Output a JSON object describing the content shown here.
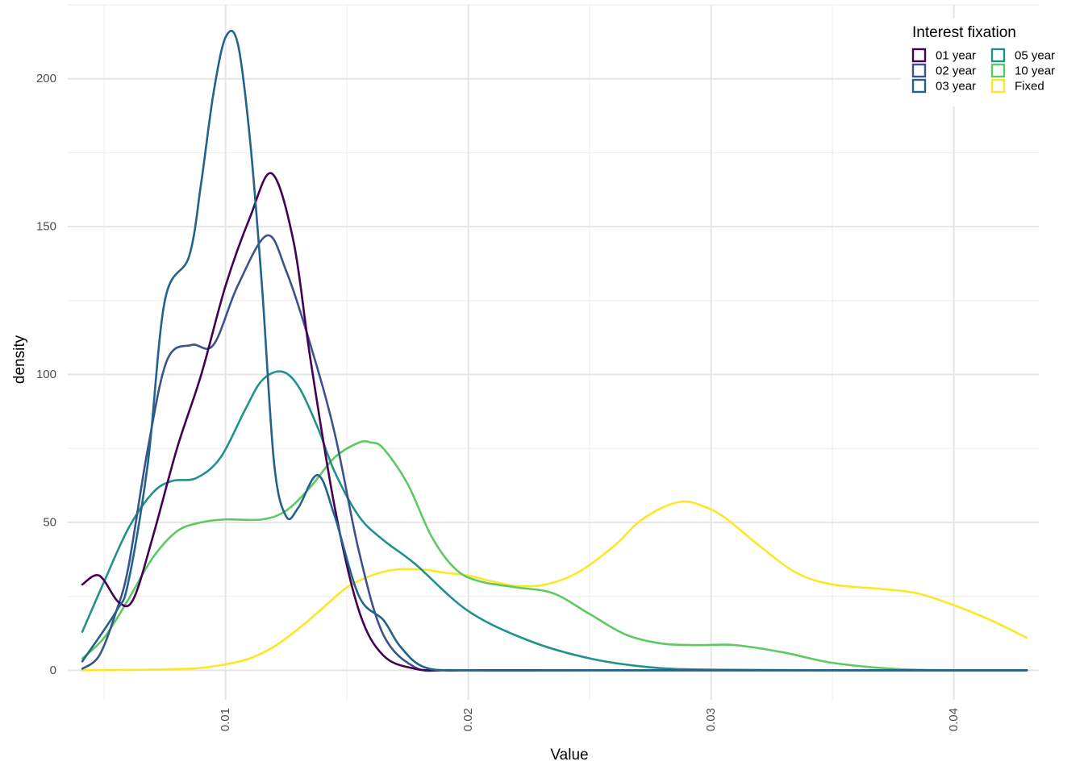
{
  "chart_data": {
    "type": "line",
    "xlabel": "Value",
    "ylabel": "density",
    "xlim": [
      0.0035,
      0.0435
    ],
    "ylim": [
      -10,
      225
    ],
    "x_ticks": [
      0.01,
      0.02,
      0.03,
      0.04
    ],
    "x_tick_labels": [
      "0.01",
      "0.02",
      "0.03",
      "0.04"
    ],
    "x_minor_ticks": [
      0.005,
      0.015,
      0.025,
      0.035
    ],
    "y_ticks": [
      0,
      50,
      100,
      150,
      200
    ],
    "y_tick_labels": [
      "0",
      "50",
      "100",
      "150",
      "200"
    ],
    "y_minor_ticks": [
      25,
      75,
      125,
      175,
      225
    ],
    "grid": true,
    "legend": {
      "title": "Interest fixation",
      "position": "top-right"
    },
    "series": [
      {
        "name": "01 year",
        "color": "#440154",
        "x": [
          0.0041,
          0.0048,
          0.0056,
          0.0062,
          0.007,
          0.008,
          0.009,
          0.01,
          0.011,
          0.0119,
          0.0128,
          0.0135,
          0.0145,
          0.0155,
          0.0165,
          0.0178,
          0.019,
          0.02,
          0.025,
          0.03,
          0.035,
          0.04,
          0.043
        ],
        "values": [
          29,
          32,
          23,
          24,
          45,
          75,
          100,
          130,
          153,
          168,
          145,
          105,
          55,
          20,
          5,
          0.5,
          0,
          0,
          0,
          0,
          0,
          0,
          0
        ]
      },
      {
        "name": "02 year",
        "color": "#3b528b",
        "x": [
          0.0041,
          0.0048,
          0.0055,
          0.006,
          0.0068,
          0.0076,
          0.0086,
          0.0095,
          0.0105,
          0.0117,
          0.0125,
          0.0135,
          0.0145,
          0.0155,
          0.0165,
          0.0178,
          0.019,
          0.02,
          0.025,
          0.03,
          0.035,
          0.04,
          0.043
        ],
        "values": [
          0.5,
          5,
          20,
          35,
          75,
          105,
          110,
          110,
          130,
          147,
          135,
          110,
          80,
          40,
          12,
          1,
          0,
          0,
          0,
          0,
          0,
          0,
          0
        ]
      },
      {
        "name": "03 year",
        "color": "#21638d",
        "x": [
          0.0041,
          0.0055,
          0.006,
          0.0068,
          0.0075,
          0.0085,
          0.009,
          0.0095,
          0.01,
          0.0105,
          0.011,
          0.0115,
          0.012,
          0.0125,
          0.013,
          0.0138,
          0.0145,
          0.0155,
          0.0165,
          0.0172,
          0.0182,
          0.02,
          0.025,
          0.03,
          0.035,
          0.04,
          0.043
        ],
        "values": [
          3,
          20,
          30,
          70,
          125,
          140,
          165,
          195,
          214,
          212,
          180,
          130,
          70,
          52,
          55,
          66,
          52,
          25,
          17,
          8,
          1,
          0,
          0,
          0,
          0,
          0,
          0
        ]
      },
      {
        "name": "05 year",
        "color": "#21918c",
        "x": [
          0.0041,
          0.005,
          0.006,
          0.007,
          0.0078,
          0.0088,
          0.0098,
          0.0108,
          0.0115,
          0.0123,
          0.013,
          0.0138,
          0.0145,
          0.0155,
          0.0165,
          0.0178,
          0.02,
          0.0225,
          0.025,
          0.0275,
          0.03,
          0.035,
          0.04,
          0.043
        ],
        "values": [
          13,
          30,
          48,
          60,
          64,
          65,
          72,
          88,
          98,
          101,
          96,
          82,
          67,
          52,
          44,
          36,
          20,
          10,
          4,
          1,
          0.2,
          0,
          0,
          0
        ]
      },
      {
        "name": "10 year",
        "color": "#5ec962",
        "x": [
          0.0041,
          0.005,
          0.006,
          0.007,
          0.008,
          0.009,
          0.01,
          0.0115,
          0.0125,
          0.0135,
          0.0145,
          0.0155,
          0.016,
          0.0165,
          0.0175,
          0.0185,
          0.0195,
          0.0205,
          0.022,
          0.0235,
          0.025,
          0.0265,
          0.028,
          0.0295,
          0.031,
          0.033,
          0.035,
          0.0375,
          0.04,
          0.043
        ],
        "values": [
          4,
          11,
          24,
          38,
          47,
          50,
          51,
          51,
          54,
          62,
          72,
          77,
          77,
          75,
          63,
          45,
          34,
          30,
          28,
          26,
          19,
          12,
          9,
          8.5,
          8.5,
          6,
          2.5,
          0.5,
          0,
          0
        ]
      },
      {
        "name": "Fixed",
        "color": "#fde725",
        "x": [
          0.0041,
          0.006,
          0.008,
          0.009,
          0.01,
          0.011,
          0.012,
          0.013,
          0.014,
          0.015,
          0.016,
          0.017,
          0.0182,
          0.019,
          0.02,
          0.021,
          0.022,
          0.0232,
          0.0245,
          0.026,
          0.027,
          0.028,
          0.0288,
          0.0295,
          0.0305,
          0.032,
          0.0335,
          0.035,
          0.037,
          0.0385,
          0.04,
          0.0415,
          0.043
        ],
        "values": [
          0,
          0.1,
          0.4,
          0.8,
          2,
          4,
          8,
          14,
          21,
          28,
          32,
          34,
          34,
          33,
          32,
          30,
          28.5,
          29,
          33,
          42,
          50,
          55,
          57,
          56,
          52,
          42,
          33,
          29,
          27.5,
          26,
          22,
          17,
          11
        ]
      }
    ]
  }
}
